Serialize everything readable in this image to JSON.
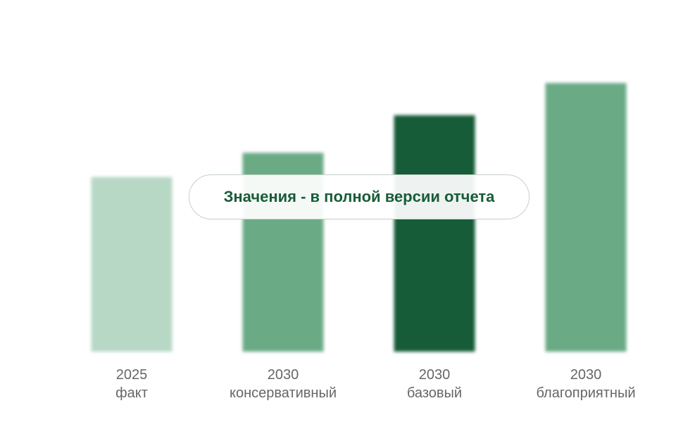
{
  "overlay": {
    "text": "Значения - в полной версии отчета"
  },
  "chart_data": {
    "type": "bar",
    "categories": [
      [
        "2025",
        "факт"
      ],
      [
        "2030",
        "консервативный"
      ],
      [
        "2030",
        "базовый"
      ],
      [
        "2030",
        "благоприятный"
      ]
    ],
    "values": [
      65,
      74,
      88,
      100
    ],
    "values_note_hidden": true,
    "colors": [
      "#b8d8c6",
      "#6aab86",
      "#175c38",
      "#6aab86"
    ],
    "ylim": [
      0,
      100
    ],
    "grid": false,
    "legend": "none"
  }
}
